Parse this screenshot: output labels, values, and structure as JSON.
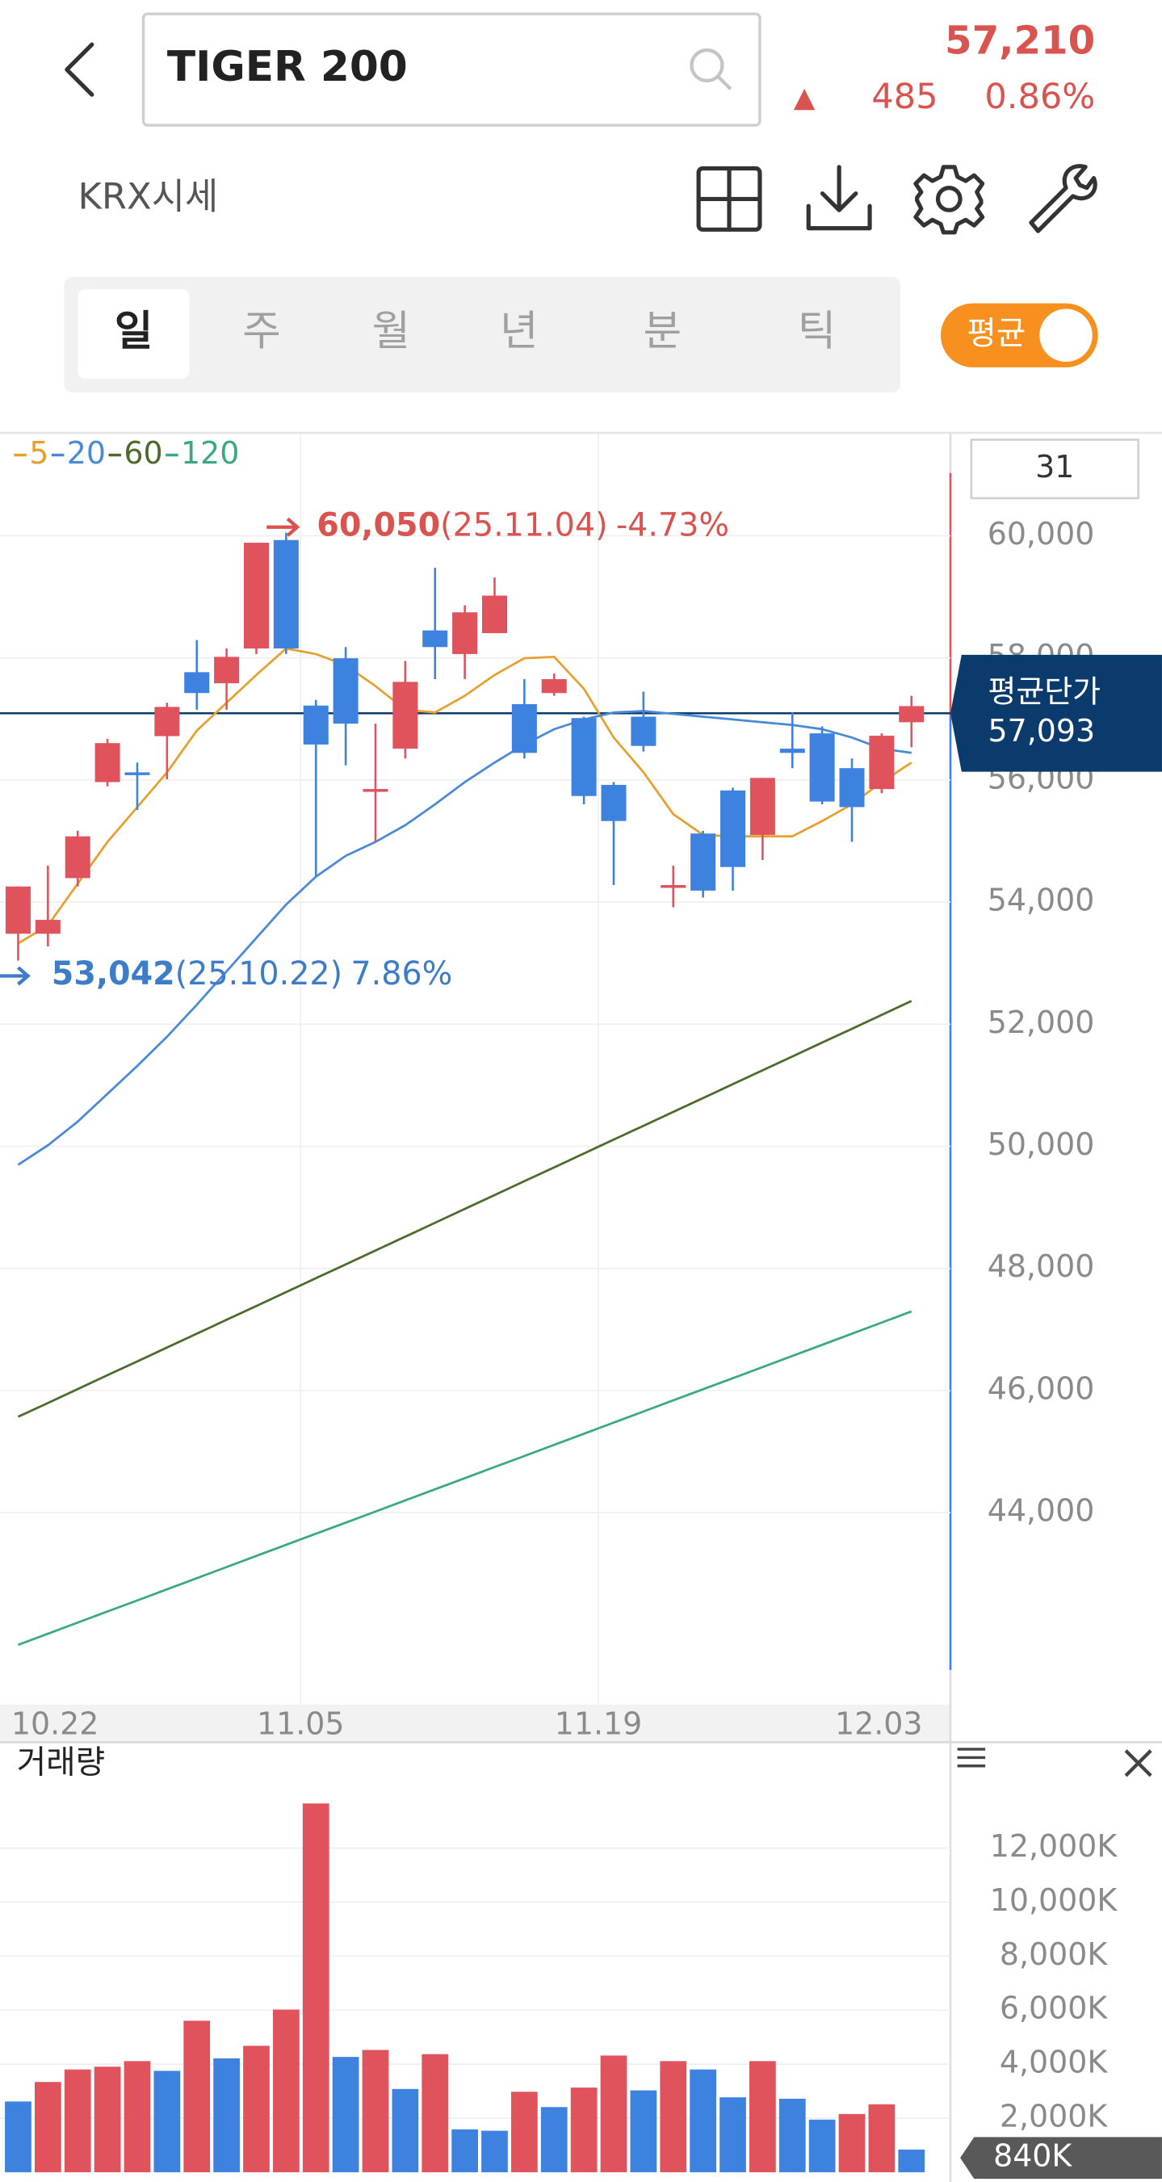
{
  "header": {
    "title": "TIGER 200",
    "price": "57,210",
    "change_sign": "▲",
    "change": "485",
    "change_rate": "0.86%"
  },
  "toolbar": {
    "source": "KRX시세"
  },
  "tabs": [
    "일",
    "주",
    "월",
    "년",
    "분",
    "틱"
  ],
  "toggle": {
    "label": "평균"
  },
  "chart_data": [
    {
      "type": "candlestick",
      "categories": [
        "10.22",
        null,
        null,
        null,
        null,
        null,
        null,
        null,
        null,
        null,
        "11.05",
        null,
        null,
        null,
        null,
        null,
        null,
        null,
        null,
        null,
        "11.19",
        null,
        null,
        null,
        null,
        null,
        null,
        null,
        null,
        null,
        "12.03"
      ],
      "open": [
        53482,
        53482,
        54393,
        55966,
        56125,
        56718,
        57766,
        57584,
        58154,
        59930,
        57219,
        57994,
        55806,
        56513,
        58450,
        58063,
        58405,
        57242,
        57424,
        57014,
        55920,
        57037,
        54234,
        55123,
        55829,
        55100,
        56513,
        56764,
        56194,
        55852,
        56946
      ],
      "high": [
        54256,
        54598,
        55168,
        56672,
        56285,
        57265,
        58291,
        58154,
        59886,
        60050,
        57311,
        58177,
        56923,
        57949,
        59476,
        58860,
        59316,
        57652,
        57743,
        57037,
        55966,
        57447,
        54598,
        55168,
        55875,
        56034,
        57105,
        56878,
        56353,
        56764,
        57379
      ],
      "low": [
        53042,
        53276,
        54256,
        55897,
        55510,
        56011,
        57151,
        57151,
        58063,
        58063,
        54416,
        56239,
        54986,
        56353,
        57652,
        57652,
        58405,
        56353,
        57379,
        55601,
        54279,
        56467,
        53915,
        54074,
        54188,
        54689,
        56194,
        55601,
        54986,
        55784,
        56536
      ],
      "close": [
        54256,
        53709,
        55077,
        56604,
        56103,
        57197,
        57424,
        58017,
        59886,
        58154,
        56581,
        56923,
        55852,
        57607,
        58177,
        58746,
        59020,
        56444,
        57652,
        55738,
        55328,
        56558,
        54279,
        54188,
        54575,
        56034,
        56444,
        55647,
        55556,
        56725,
        57210
      ],
      "up_color": "#e0535d",
      "down_color": "#3e82e0",
      "ma_series": [
        {
          "name": "5",
          "color": "#e6a02e",
          "values": [
            53322,
            53618,
            54302,
            54986,
            55556,
            56126,
            56809,
            57265,
            57721,
            58154,
            58063,
            57880,
            57539,
            57151,
            57105,
            57379,
            57721,
            57994,
            58017,
            57493,
            56695,
            56126,
            55442,
            55100,
            55077,
            55077,
            55077,
            55328,
            55601,
            55966,
            56285
          ]
        },
        {
          "name": "20",
          "color": "#4a89d6",
          "values": [
            49698,
            50017,
            50404,
            50860,
            51316,
            51794,
            52319,
            52866,
            53413,
            53960,
            54416,
            54758,
            54986,
            55259,
            55601,
            55966,
            56285,
            56581,
            56832,
            56991,
            57105,
            57128,
            57082,
            57037,
            56991,
            56946,
            56900,
            56832,
            56695,
            56513,
            56444
          ]
        },
        {
          "name": "60",
          "color": "#4d6a2c",
          "values": [
            45570,
            45797,
            46024,
            46251,
            46478,
            46705,
            46932,
            47159,
            47386,
            47613,
            47840,
            48067,
            48294,
            48521,
            48748,
            48975,
            49202,
            49429,
            49656,
            49883,
            50110,
            50337,
            50564,
            50791,
            51018,
            51245,
            51472,
            51699,
            51926,
            52153,
            52380
          ]
        },
        {
          "name": "120",
          "color": "#3aa981",
          "values": [
            41835,
            42017,
            42199,
            42381,
            42563,
            42745,
            42927,
            43109,
            43291,
            43473,
            43655,
            43837,
            44019,
            44201,
            44383,
            44565,
            44747,
            44929,
            45111,
            45293,
            45475,
            45657,
            45839,
            46021,
            46203,
            46385,
            46567,
            46749,
            46931,
            47113,
            47295
          ]
        }
      ],
      "ylim": [
        40855,
        61664
      ],
      "yticks": [
        {
          "value": 44000,
          "label": "44,000"
        },
        {
          "value": 46000,
          "label": "46,000"
        },
        {
          "value": 48000,
          "label": "48,000"
        },
        {
          "value": 50000,
          "label": "50,000"
        },
        {
          "value": 52000,
          "label": "52,000"
        },
        {
          "value": 54000,
          "label": "54,000"
        },
        {
          "value": 56000,
          "label": "56,000"
        },
        {
          "value": 58000,
          "label": "58,000"
        },
        {
          "value": 60000,
          "label": "60,000"
        }
      ],
      "grid": true,
      "visible_count": 31,
      "high_annotation": {
        "value": 60050,
        "label": "60,050",
        "date": "(25.11.04)",
        "change": "-4.73%",
        "color": "#d9534f"
      },
      "low_annotation": {
        "value": 53042,
        "label": "53,042",
        "date": "(25.10.22)",
        "change": "7.86%",
        "color": "#3d7cc9"
      },
      "average_price": {
        "title": "평균단가",
        "value": 57093,
        "label": "57,093",
        "color": "#0b3a6c"
      }
    },
    {
      "type": "bar",
      "title": "거래량",
      "values": [
        2619,
        3340,
        3804,
        3907,
        4113,
        3753,
        5608,
        4216,
        4680,
        6021,
        13649,
        4268,
        4526,
        3082,
        4371,
        1588,
        1536,
        2979,
        2412,
        3134,
        4320,
        3031,
        4113,
        3804,
        2773,
        4113,
        2722,
        1948,
        2155,
        2515,
        840
      ],
      "colors": [
        "#3e82e0",
        "#e0535d",
        "#e0535d",
        "#e0535d",
        "#e0535d",
        "#3e82e0",
        "#e0535d",
        "#3e82e0",
        "#e0535d",
        "#e0535d",
        "#e0535d",
        "#3e82e0",
        "#e0535d",
        "#3e82e0",
        "#e0535d",
        "#3e82e0",
        "#3e82e0",
        "#e0535d",
        "#3e82e0",
        "#e0535d",
        "#e0535d",
        "#3e82e0",
        "#e0535d",
        "#3e82e0",
        "#3e82e0",
        "#e0535d",
        "#3e82e0",
        "#3e82e0",
        "#e0535d",
        "#e0535d",
        "#3e82e0"
      ],
      "ylim": [
        0,
        15760
      ],
      "yticks": [
        {
          "value": 2000,
          "label": "2,000K"
        },
        {
          "value": 4000,
          "label": "4,000K"
        },
        {
          "value": 6000,
          "label": "6,000K"
        },
        {
          "value": 8000,
          "label": "8,000K"
        },
        {
          "value": 10000,
          "label": "10,000K"
        },
        {
          "value": 12000,
          "label": "12,000K"
        }
      ],
      "grid": true,
      "current": {
        "value": 840,
        "label": "840K"
      }
    }
  ]
}
